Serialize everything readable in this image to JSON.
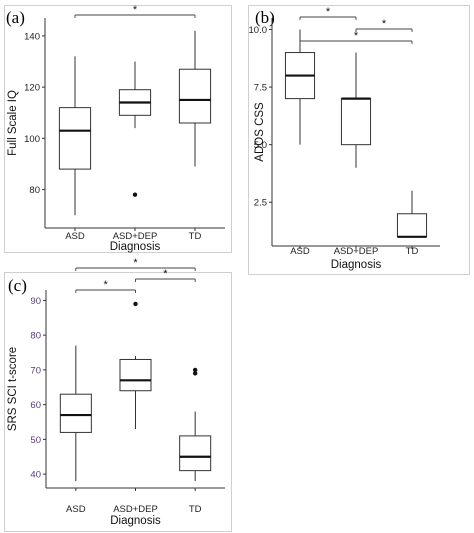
{
  "chart_data": [
    {
      "type": "box",
      "panel": "(a)",
      "xlabel": "Diagnosis",
      "ylabel": "Full Scale IQ",
      "categories": [
        "ASD",
        "ASD+DEP",
        "TD"
      ],
      "yticks": [
        80,
        100,
        120,
        140
      ],
      "ylim": [
        65,
        147
      ],
      "boxes": [
        {
          "category": "ASD",
          "min": 70,
          "q1": 88,
          "median": 103,
          "q3": 112,
          "max": 132,
          "outliers": []
        },
        {
          "category": "ASD+DEP",
          "min": 104,
          "q1": 109,
          "median": 114,
          "q3": 119,
          "max": 130,
          "outliers": [
            78
          ]
        },
        {
          "category": "TD",
          "min": 89,
          "q1": 106,
          "median": 115,
          "q3": 127,
          "max": 142,
          "outliers": []
        }
      ],
      "significance": [
        {
          "from": "ASD",
          "to": "TD",
          "label": "*",
          "level": 0
        }
      ]
    },
    {
      "type": "box",
      "panel": "(b)",
      "xlabel": "Diagnosis",
      "ylabel": "ADOS CSS",
      "categories": [
        "ASD",
        "ASD+DEP",
        "TD"
      ],
      "yticks": [
        2.5,
        5.0,
        7.5,
        10.0
      ],
      "ytick_labels": [
        "2.5",
        "5.0",
        "7.5",
        "10.0"
      ],
      "ylim": [
        0.6,
        10.5
      ],
      "boxes": [
        {
          "category": "ASD",
          "min": 5,
          "q1": 7,
          "median": 8,
          "q3": 9,
          "max": 10,
          "outliers": []
        },
        {
          "category": "ASD+DEP",
          "min": 4,
          "q1": 5,
          "median": 7,
          "q3": 7,
          "max": 9,
          "outliers": []
        },
        {
          "category": "TD",
          "min": 1,
          "q1": 1,
          "median": 1,
          "q3": 2,
          "max": 3,
          "outliers": []
        }
      ],
      "significance": [
        {
          "from": "ASD",
          "to": "ASD+DEP",
          "label": "*",
          "level": 0
        },
        {
          "from": "ASD+DEP",
          "to": "TD",
          "label": "*",
          "level": 1
        },
        {
          "from": "ASD",
          "to": "TD",
          "label": "*",
          "level": 2
        }
      ]
    },
    {
      "type": "box",
      "panel": "(c)",
      "xlabel": "Diagnosis",
      "ylabel": "SRS SCI t-score",
      "categories": [
        "ASD",
        "ASD+DEP",
        "TD"
      ],
      "yticks": [
        40,
        50,
        60,
        70,
        80,
        90
      ],
      "ylim": [
        36,
        93
      ],
      "boxes": [
        {
          "category": "ASD",
          "min": 38,
          "q1": 52,
          "median": 57,
          "q3": 63,
          "max": 77,
          "outliers": []
        },
        {
          "category": "ASD+DEP",
          "min": 53,
          "q1": 64,
          "median": 67,
          "q3": 73,
          "max": 74,
          "outliers": [
            89
          ]
        },
        {
          "category": "TD",
          "min": 38,
          "q1": 41,
          "median": 45,
          "q3": 51,
          "max": 58,
          "outliers": [
            69,
            70
          ]
        }
      ],
      "significance": [
        {
          "from": "ASD",
          "to": "ASD+DEP",
          "label": "*",
          "level": 0
        },
        {
          "from": "ASD+DEP",
          "to": "TD",
          "label": "*",
          "level": 1
        },
        {
          "from": "ASD",
          "to": "TD",
          "label": "*",
          "level": 2
        }
      ]
    }
  ]
}
